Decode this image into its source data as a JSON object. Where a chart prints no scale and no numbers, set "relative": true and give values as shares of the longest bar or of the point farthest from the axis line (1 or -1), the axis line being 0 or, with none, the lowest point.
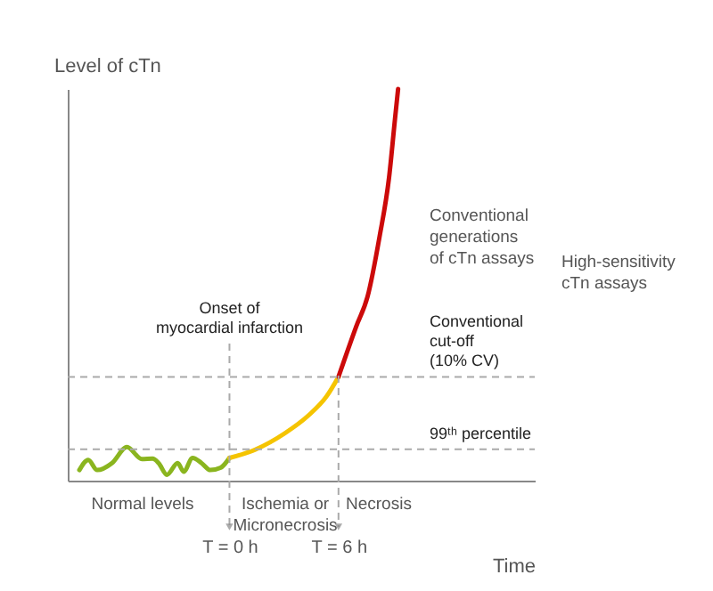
{
  "chart_data": {
    "type": "line",
    "relative": true,
    "xlabel": "Time",
    "ylabel": "Level of cTn",
    "xlim": [
      -8.9,
      16.8
    ],
    "xticks": [
      {
        "value": 0,
        "label": "T = 0 h"
      },
      {
        "value": 6,
        "label": "T = 6 h"
      }
    ],
    "series": [
      {
        "color": "#8ab51f",
        "x": [
          -8.26,
          -7.77,
          -7.28,
          -6.46,
          -5.64,
          -4.82,
          -4.23,
          -3.9,
          -3.44,
          -2.85,
          -2.52,
          -2.03,
          -1.54,
          -1.05,
          -0.49,
          0
        ],
        "values": [
          0.027,
          0.053,
          0.027,
          0.045,
          0.086,
          0.055,
          0.056,
          0.045,
          0.015,
          0.045,
          0.023,
          0.058,
          0.045,
          0.027,
          0.033,
          0.058
        ]
      },
      {
        "color": "#f5c400",
        "x": [
          0,
          1.41,
          3.05,
          4.36,
          5.34,
          6
        ],
        "values": [
          0.058,
          0.079,
          0.121,
          0.167,
          0.215,
          0.265
        ]
      },
      {
        "color": "#cc0a0a",
        "x": [
          6,
          6.98,
          7.6,
          8.26,
          8.78,
          9.11,
          9.28
        ],
        "values": [
          0.265,
          0.394,
          0.47,
          0.623,
          0.773,
          0.924,
          1.0
        ]
      }
    ],
    "ref_lines": [
      {
        "axis": "y",
        "value": 0.08,
        "label": "99ᵗʰ percentile",
        "color": "#aaaaaa",
        "line_style": "dashed"
      },
      {
        "axis": "y",
        "value": 0.265,
        "label": "Conventional\ncut-off\n(10% CV)",
        "color": "#aaaaaa",
        "line_style": "dashed"
      },
      {
        "axis": "x",
        "value": 0,
        "label": "Onset of\nmyocardial infarction",
        "color": "#aaaaaa",
        "line_style": "dashed"
      },
      {
        "axis": "x",
        "value": 6,
        "label": null,
        "color": "#aaaaaa",
        "line_style": "dashed"
      }
    ],
    "annotations": [
      "Normal levels",
      "Ischemia or\nMicronecrosis",
      "Necrosis",
      "Conventional\ngenerations\nof cTn assays",
      "High-sensitivity\ncTn assays"
    ],
    "grid": false
  }
}
